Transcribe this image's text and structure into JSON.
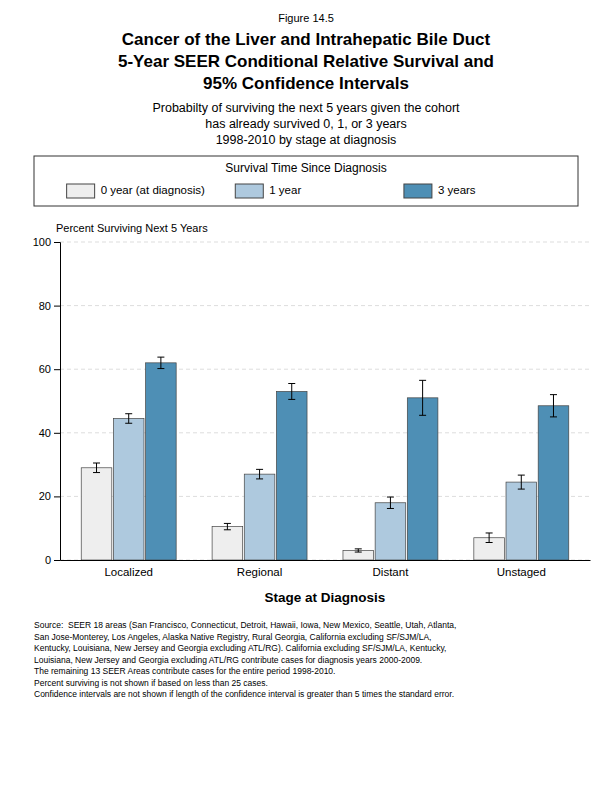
{
  "chart_data": {
    "type": "bar",
    "figure_label": "Figure 14.5",
    "title": [
      "Cancer of the Liver and Intrahepatic Bile Duct",
      "5-Year SEER Conditional Relative Survival and",
      "95% Confidence Intervals"
    ],
    "subtitle": [
      "Probabilty of surviving the next 5 years given the cohort",
      "has already survived 0, 1, or 3 years",
      "1998-2010 by stage at diagnosis"
    ],
    "legend_title": "Survival Time Since Diagnosis",
    "legend": "top",
    "x_label": "Stage at Diagnosis",
    "y_label": "Percent Surviving Next 5 Years",
    "categories": [
      "Localized",
      "Regional",
      "Distant",
      "Unstaged"
    ],
    "series": [
      {
        "name": "0 year (at diagnosis)",
        "color": "#eeeeee",
        "values": [
          29.0,
          10.5,
          3.0,
          7.0
        ],
        "errors": [
          1.5,
          1.0,
          0.5,
          1.5
        ]
      },
      {
        "name": "1 year",
        "color": "#aec9de",
        "values": [
          44.5,
          27.0,
          18.0,
          24.5
        ],
        "errors": [
          1.5,
          1.5,
          1.8,
          2.2
        ]
      },
      {
        "name": "3 years",
        "color": "#4e8fb5",
        "values": [
          62.0,
          53.0,
          51.0,
          48.5
        ],
        "errors": [
          1.8,
          2.5,
          5.5,
          3.5
        ]
      }
    ],
    "ylim": [
      0,
      100
    ],
    "yticks": [
      0,
      20,
      40,
      60,
      80,
      100
    ],
    "grid": true,
    "source": [
      "Source:  SEER 18 areas (San Francisco, Connecticut, Detroit, Hawaii, Iowa, New Mexico, Seattle, Utah, Atlanta,",
      "San Jose-Monterey, Los Angeles, Alaska Native Registry, Rural Georgia, California excluding SF/SJM/LA,",
      "Kentucky, Louisiana, New Jersey and Georgia excluding ATL/RG). California excluding SF/SJM/LA, Kentucky,",
      "Louisiana, New Jersey and Georgia excluding ATL/RG contribute cases for diagnosis years 2000-2009.",
      "The remaining 13 SEER Areas contribute cases for the entire period 1998-2010.",
      "Percent surviving is not shown if based on less than 25 cases.",
      "Confidence intervals are not shown if length of the confidence interval is greater than 5 times the standard error."
    ]
  }
}
